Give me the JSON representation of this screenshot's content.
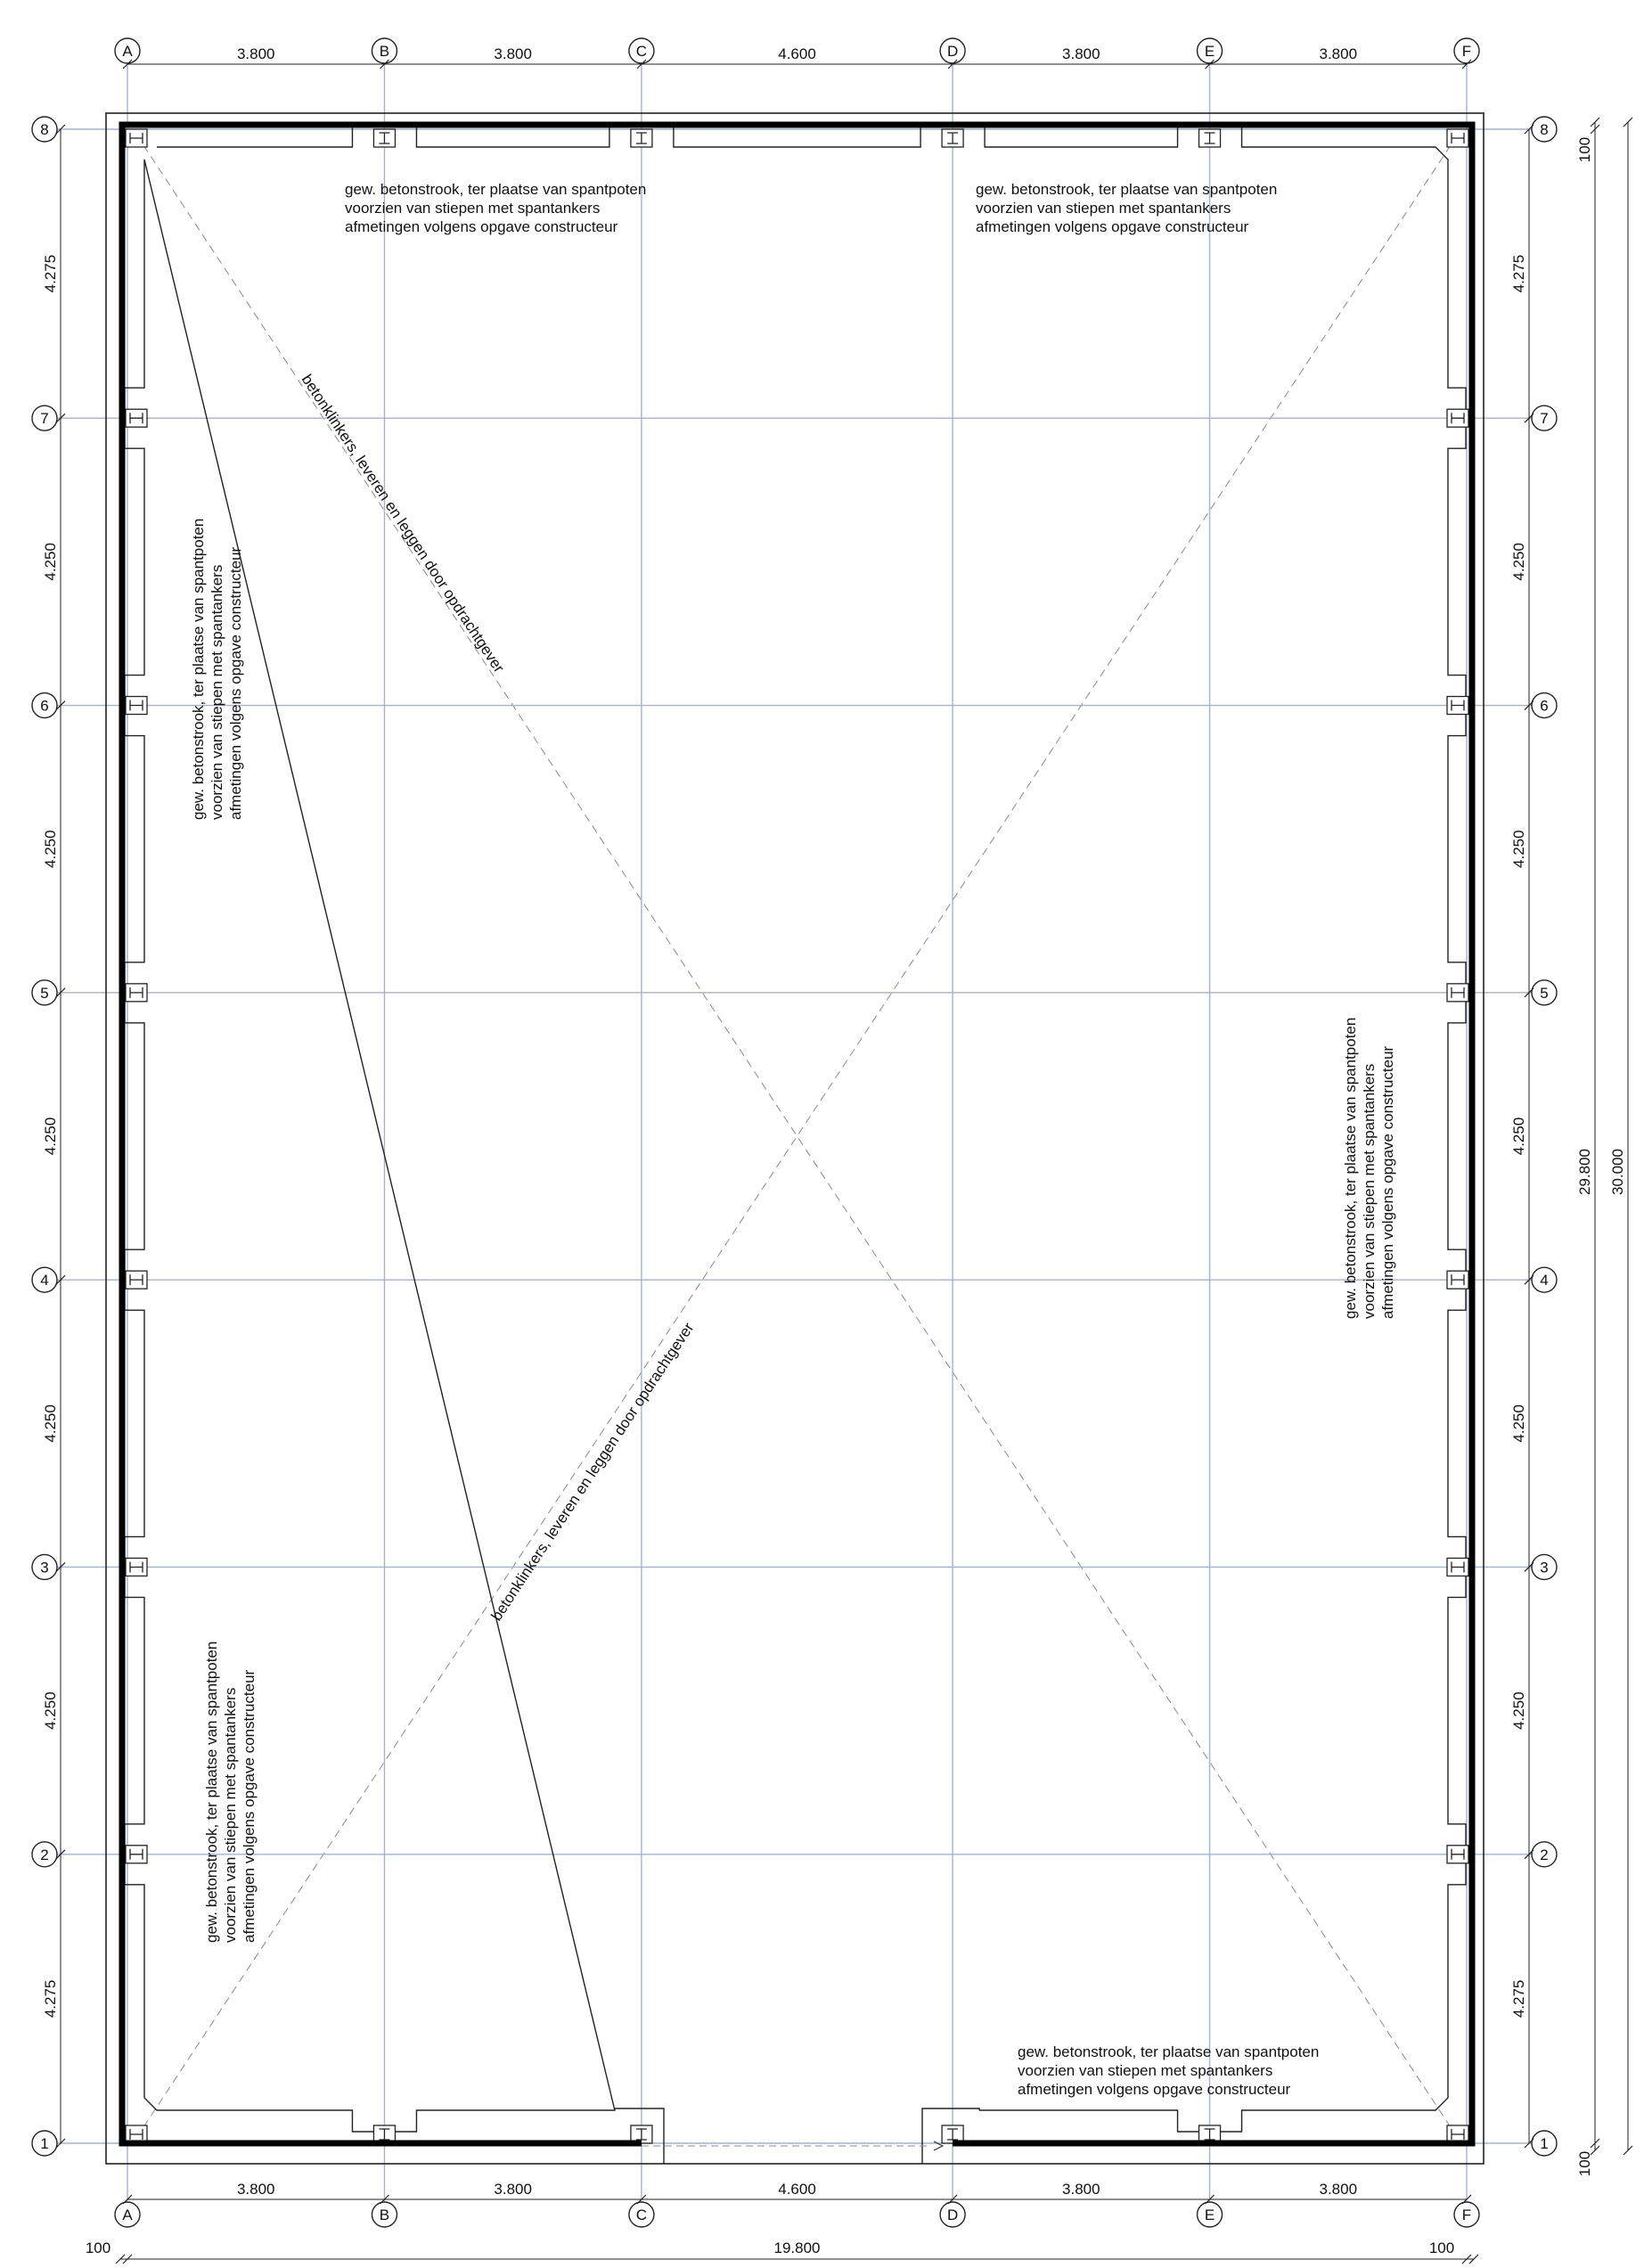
{
  "grid": {
    "columns": [
      {
        "id": "A",
        "pos": 0
      },
      {
        "id": "B",
        "pos": 3800
      },
      {
        "id": "C",
        "pos": 7600
      },
      {
        "id": "D",
        "pos": 12200
      },
      {
        "id": "E",
        "pos": 16000
      },
      {
        "id": "F",
        "pos": 19800
      }
    ],
    "rows": [
      {
        "id": "1",
        "pos": 0
      },
      {
        "id": "2",
        "pos": 4275
      },
      {
        "id": "3",
        "pos": 8525
      },
      {
        "id": "4",
        "pos": 12775
      },
      {
        "id": "5",
        "pos": 17025
      },
      {
        "id": "6",
        "pos": 21275
      },
      {
        "id": "7",
        "pos": 25525
      },
      {
        "id": "8",
        "pos": 29800
      }
    ],
    "column_spacings": [
      "3.800",
      "3.800",
      "4.600",
      "3.800",
      "3.800"
    ],
    "row_spacings": [
      "4.275",
      "4.250",
      "4.250",
      "4.250",
      "4.250",
      "4.250",
      "4.275"
    ]
  },
  "dimensions": {
    "edge_offset": "100",
    "total_width": "19.800",
    "grid_length": "29.800",
    "total_length": "30.000"
  },
  "notes": {
    "strip_line1": "gew. betonstrook, ter plaatse van spantpoten",
    "strip_line2": "voorzien van stiepen met spantankers",
    "strip_line3": "afmetingen volgens opgave constructeur",
    "paving": "betonklinkers, leveren en leggen door opdrachtgever"
  },
  "colors": {
    "grid_line": "#9fb3d6",
    "wall": "#000000",
    "line": "#222222",
    "dashed": "#8a8a8a"
  }
}
